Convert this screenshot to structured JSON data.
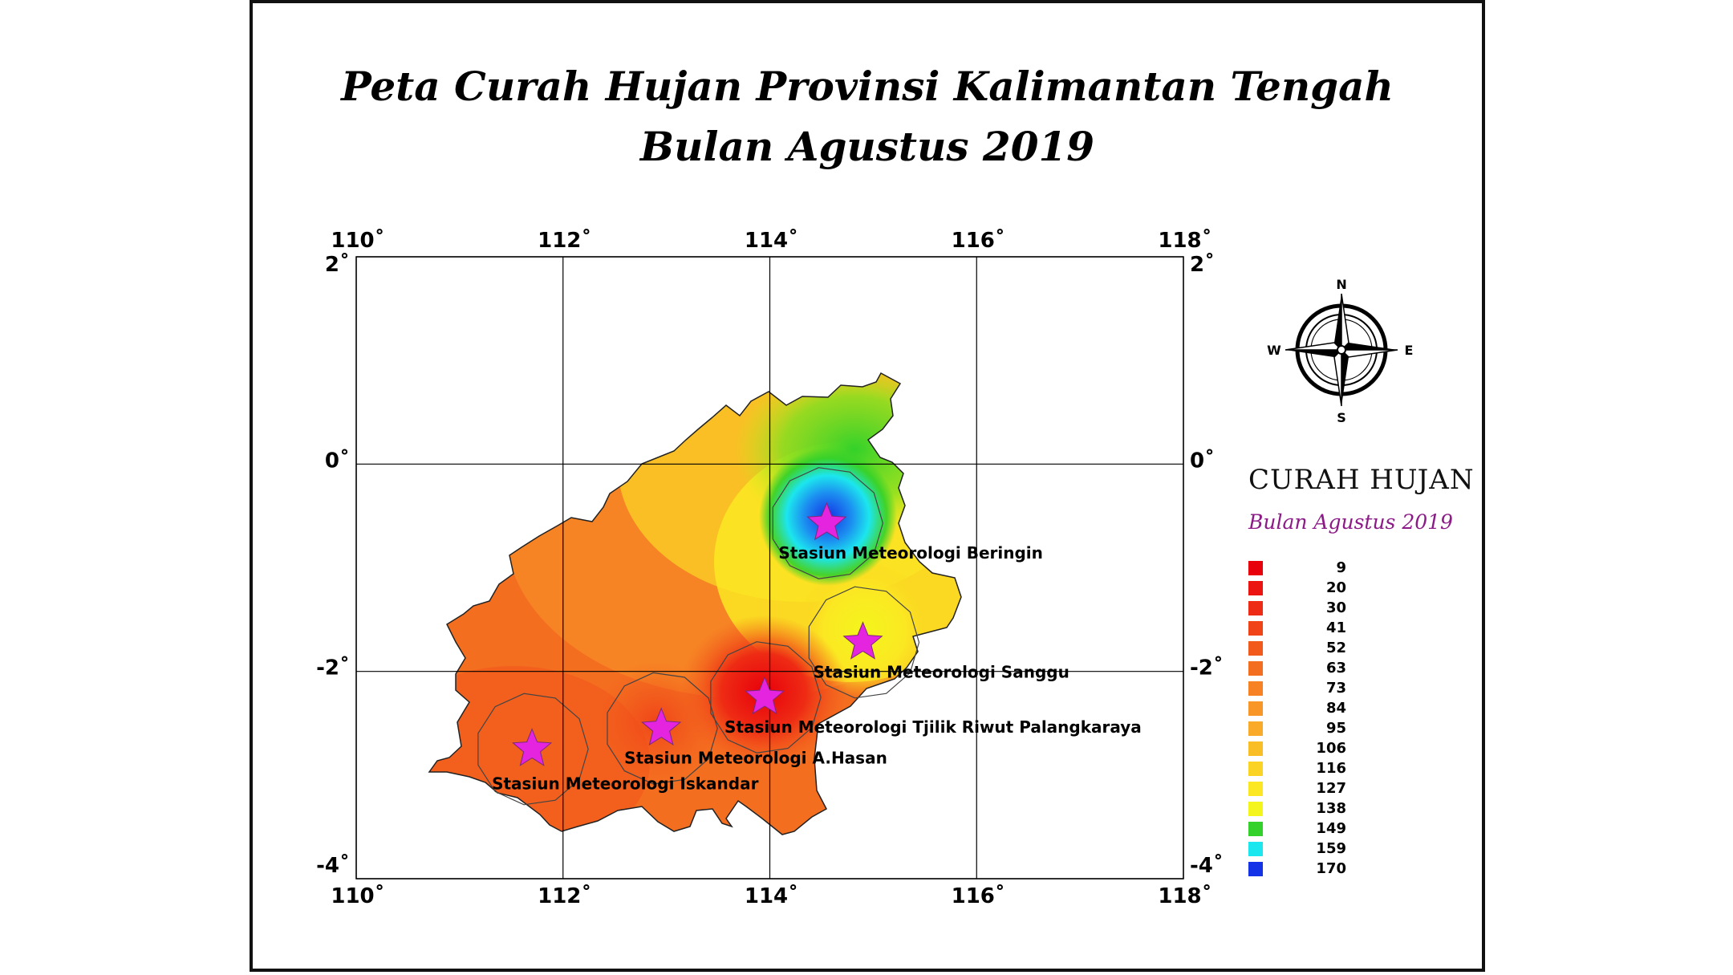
{
  "title_line1": "Peta Curah Hujan Provinsi Kalimantan Tengah",
  "title_line2": "Bulan Agustus 2019",
  "axes": {
    "lon_labels": [
      "110˚",
      "112˚",
      "114˚",
      "116˚",
      "118˚"
    ],
    "lat_labels": [
      "2˚",
      "0˚",
      "-2˚",
      "-4˚"
    ],
    "lon_values": [
      110,
      112,
      114,
      116,
      118
    ],
    "lat_values": [
      2,
      0,
      -2,
      -4
    ]
  },
  "compass": {
    "n": "N",
    "s": "S",
    "e": "E",
    "w": "W"
  },
  "stations": [
    {
      "name": "Stasiun Meteorologi Beringin",
      "lon": 114.55,
      "lat": -0.57
    },
    {
      "name": "Stasiun Meteorologi Sanggu",
      "lon": 114.9,
      "lat": -1.72
    },
    {
      "name": "Stasiun Meteorologi  Tjilik Riwut Palangkaraya",
      "lon": 113.95,
      "lat": -2.25
    },
    {
      "name": "Stasiun Meteorologi A.Hasan",
      "lon": 112.95,
      "lat": -2.55
    },
    {
      "name": "Stasiun Meteorologi Iskandar",
      "lon": 111.7,
      "lat": -2.75
    }
  ],
  "legend": {
    "title": "CURAH HUJAN",
    "subtitle": "Bulan Agustus 2019",
    "items": [
      {
        "value": "9",
        "color": "#e8000b"
      },
      {
        "value": "20",
        "color": "#ec1410"
      },
      {
        "value": "30",
        "color": "#ee2b14"
      },
      {
        "value": "41",
        "color": "#f04418"
      },
      {
        "value": "52",
        "color": "#f25a1c"
      },
      {
        "value": "63",
        "color": "#f46e20"
      },
      {
        "value": "73",
        "color": "#f68224"
      },
      {
        "value": "84",
        "color": "#f89628"
      },
      {
        "value": "95",
        "color": "#f8aa28"
      },
      {
        "value": "106",
        "color": "#f9be26"
      },
      {
        "value": "116",
        "color": "#fad324"
      },
      {
        "value": "127",
        "color": "#fbe822"
      },
      {
        "value": "138",
        "color": "#f4f51c"
      },
      {
        "value": "149",
        "color": "#33d12a"
      },
      {
        "value": "159",
        "color": "#1ce6ee"
      },
      {
        "value": "170",
        "color": "#1432e6"
      }
    ]
  },
  "colors": {
    "station_star": "#e524e0",
    "grid": "#000000"
  }
}
